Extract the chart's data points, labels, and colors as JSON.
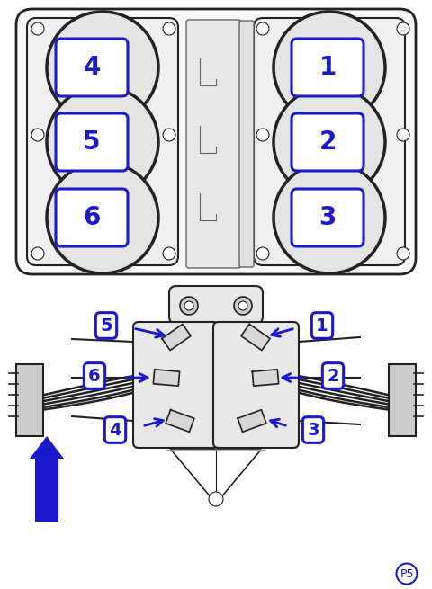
{
  "bg_color": "#ffffff",
  "blue": "#1a1acc",
  "black": "#222222",
  "gray": "#aaaaaa",
  "darkgray": "#666666",
  "lightgray": "#dddddd",
  "fig_width": 4.8,
  "fig_height": 6.55,
  "p5_label": "P5",
  "top_left_labels": [
    "4",
    "5",
    "6"
  ],
  "top_right_labels": [
    "1",
    "2",
    "3"
  ],
  "bottom_labels": [
    "1",
    "2",
    "3",
    "4",
    "5",
    "6"
  ]
}
